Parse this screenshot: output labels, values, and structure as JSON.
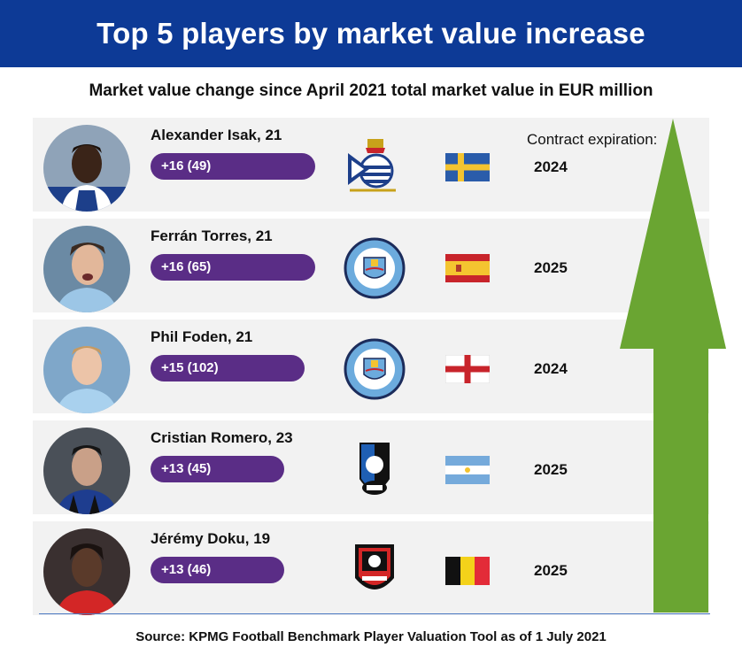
{
  "title": "Top 5 players by market value increase",
  "subtitle": "Market value change since April 2021 total market value in EUR million",
  "contract_label": "Contract expiration:",
  "source": "Source: KPMG Football Benchmark Player Valuation Tool as of 1 July 2021",
  "colors": {
    "banner": "#0d3a96",
    "bar": "#5a2d86",
    "arrow": "#6aa532"
  },
  "chart_data": {
    "type": "bar",
    "categories": [
      "Alexander Isak, 21",
      "Ferrán Torres, 21",
      "Phil Foden, 21",
      "Cristian Romero, 23",
      "Jérémy Doku, 19"
    ],
    "series": [
      {
        "values": [
          16,
          16,
          15,
          13,
          13
        ]
      },
      {
        "values": [
          49,
          65,
          102,
          45,
          46
        ]
      }
    ],
    "value_labels": [
      "+16 (49)",
      "+16 (65)",
      "+15 (102)",
      "+13 (45)",
      "+13 (46)"
    ],
    "contract_expiration": [
      "2024",
      "2025",
      "2024",
      "2025",
      "2025"
    ],
    "clubs": [
      "real-sociedad-crest-icon",
      "manchester-city-crest-icon",
      "manchester-city-crest-icon",
      "atalanta-crest-icon",
      "stade-rennais-crest-icon"
    ],
    "flags": [
      "sweden-flag-icon",
      "spain-flag-icon",
      "england-flag-icon",
      "argentina-flag-icon",
      "belgium-flag-icon"
    ]
  }
}
